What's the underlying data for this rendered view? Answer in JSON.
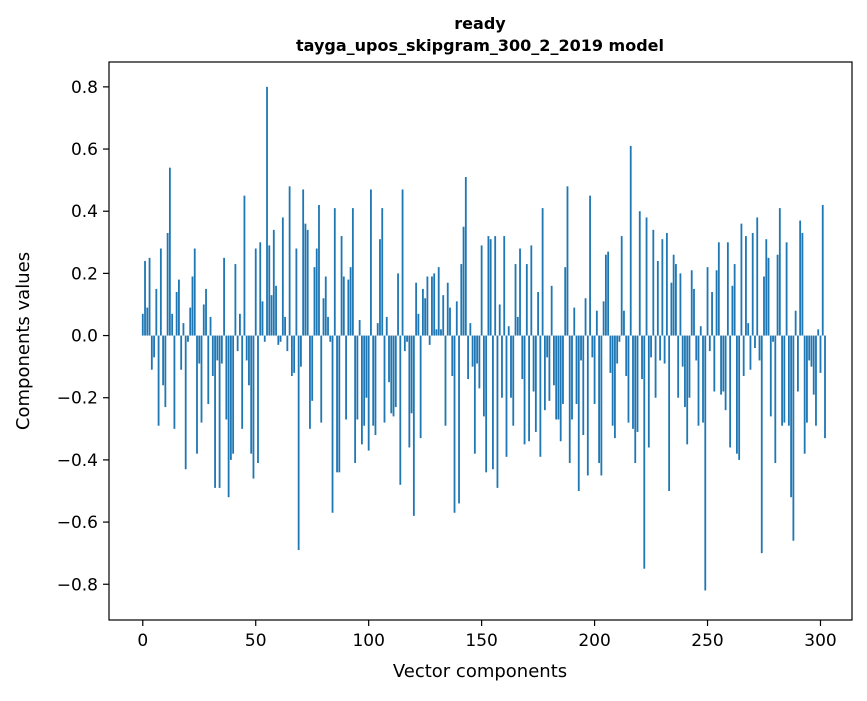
{
  "chart_data": {
    "type": "bar",
    "title_line1": "ready",
    "title_line2": "tayga_upos_skipgram_300_2_2019 model",
    "xlabel": "Vector components",
    "ylabel": "Components values",
    "xlim": [
      -14.95,
      313.95
    ],
    "ylim": [
      -0.915,
      0.88
    ],
    "xticks": [
      0,
      50,
      100,
      150,
      200,
      250,
      300
    ],
    "xtick_labels": [
      "0",
      "50",
      "100",
      "150",
      "200",
      "250",
      "300"
    ],
    "yticks": [
      -0.8,
      -0.6,
      -0.4,
      -0.2,
      0.0,
      0.2,
      0.4,
      0.6,
      0.8
    ],
    "ytick_labels": [
      "−0.8",
      "−0.6",
      "−0.4",
      "−0.2",
      "0.0",
      "0.2",
      "0.4",
      "0.6",
      "0.8"
    ],
    "bar_color": "#1f77b4",
    "values": [
      0.07,
      0.24,
      0.09,
      0.25,
      -0.11,
      -0.07,
      0.15,
      -0.29,
      0.28,
      -0.16,
      -0.23,
      0.33,
      0.54,
      0.07,
      -0.3,
      0.14,
      0.18,
      -0.11,
      0.04,
      -0.43,
      -0.02,
      0.09,
      0.19,
      0.28,
      -0.38,
      -0.09,
      -0.28,
      0.1,
      0.15,
      -0.22,
      0.06,
      -0.13,
      -0.49,
      -0.08,
      -0.49,
      -0.09,
      0.25,
      -0.27,
      -0.52,
      -0.4,
      -0.38,
      0.23,
      -0.05,
      0.07,
      -0.3,
      0.45,
      -0.08,
      -0.16,
      -0.38,
      -0.46,
      0.28,
      -0.41,
      0.3,
      0.11,
      -0.02,
      0.8,
      0.29,
      0.13,
      0.34,
      0.16,
      -0.03,
      -0.02,
      0.38,
      0.06,
      -0.05,
      0.48,
      -0.13,
      -0.12,
      0.28,
      -0.69,
      -0.1,
      0.47,
      0.36,
      0.34,
      -0.3,
      -0.21,
      0.22,
      0.28,
      0.42,
      -0.28,
      0.12,
      0.19,
      0.06,
      -0.02,
      -0.57,
      0.41,
      -0.44,
      -0.44,
      0.32,
      0.19,
      -0.27,
      0.18,
      0.22,
      0.41,
      -0.41,
      -0.27,
      0.05,
      -0.35,
      -0.29,
      -0.2,
      -0.37,
      0.47,
      -0.29,
      -0.32,
      0.04,
      0.31,
      0.41,
      -0.28,
      0.06,
      -0.15,
      -0.25,
      -0.26,
      -0.23,
      0.2,
      -0.48,
      0.47,
      -0.05,
      -0.02,
      -0.36,
      -0.25,
      -0.58,
      0.17,
      0.07,
      -0.33,
      0.15,
      0.12,
      0.19,
      -0.03,
      0.19,
      0.2,
      0.02,
      0.22,
      0.02,
      0.13,
      -0.29,
      0.17,
      0.09,
      -0.13,
      -0.57,
      0.11,
      -0.54,
      0.23,
      0.35,
      0.51,
      -0.14,
      0.04,
      -0.1,
      -0.38,
      -0.09,
      -0.17,
      0.29,
      -0.26,
      -0.44,
      0.32,
      0.31,
      -0.43,
      0.32,
      -0.49,
      0.1,
      -0.2,
      0.32,
      -0.39,
      0.03,
      -0.2,
      -0.29,
      0.23,
      0.06,
      0.28,
      -0.14,
      -0.35,
      0.23,
      -0.34,
      0.29,
      -0.18,
      -0.31,
      0.14,
      -0.39,
      0.41,
      -0.24,
      -0.07,
      -0.21,
      0.16,
      -0.16,
      -0.27,
      -0.27,
      -0.34,
      -0.22,
      0.22,
      0.48,
      -0.41,
      -0.27,
      0.09,
      -0.22,
      -0.5,
      -0.08,
      -0.32,
      0.12,
      -0.45,
      0.45,
      -0.07,
      -0.22,
      0.08,
      -0.41,
      -0.45,
      0.11,
      0.26,
      0.27,
      -0.12,
      -0.29,
      -0.33,
      -0.09,
      -0.02,
      0.32,
      0.08,
      -0.13,
      -0.28,
      0.61,
      -0.3,
      -0.41,
      -0.31,
      0.4,
      -0.14,
      -0.75,
      0.38,
      -0.36,
      -0.07,
      0.34,
      -0.2,
      0.24,
      -0.08,
      0.31,
      -0.09,
      0.33,
      -0.5,
      0.17,
      0.26,
      0.23,
      -0.2,
      0.2,
      -0.1,
      -0.23,
      -0.35,
      -0.2,
      0.21,
      0.15,
      -0.08,
      -0.29,
      0.03,
      -0.28,
      -0.82,
      0.22,
      -0.05,
      0.14,
      -0.18,
      0.21,
      0.3,
      -0.19,
      -0.18,
      -0.24,
      0.3,
      -0.36,
      0.16,
      0.23,
      -0.38,
      -0.4,
      0.36,
      -0.13,
      0.32,
      0.04,
      -0.11,
      0.33,
      -0.04,
      0.38,
      -0.08,
      -0.7,
      0.19,
      0.31,
      0.25,
      -0.26,
      -0.02,
      -0.41,
      0.26,
      0.41,
      -0.29,
      -0.28,
      0.3,
      -0.29,
      -0.52,
      -0.66,
      0.08,
      -0.18,
      0.37,
      0.33,
      -0.38,
      -0.28,
      -0.08,
      -0.1,
      -0.19,
      -0.29,
      0.02,
      -0.12,
      0.42,
      -0.33
    ]
  }
}
